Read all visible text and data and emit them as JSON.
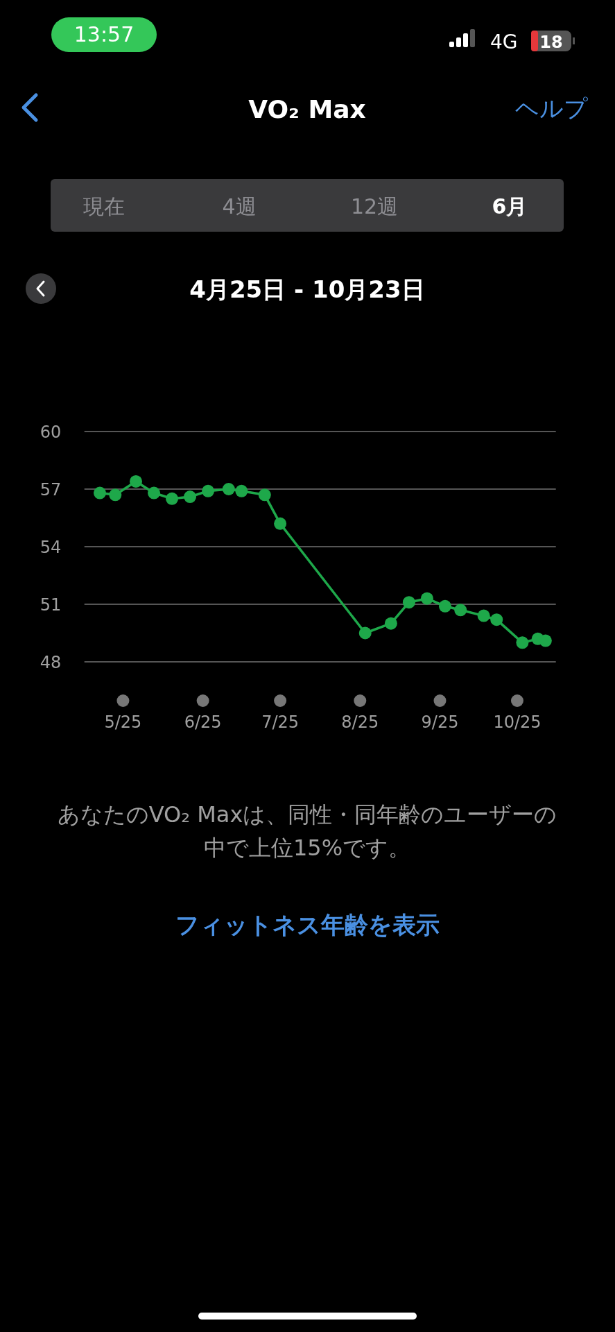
{
  "chart_data": {
    "type": "line",
    "title": "VO₂ Max",
    "subtitle": "4月25日 - 10月23日",
    "annotations": [
      "13:57",
      "4G",
      "18",
      "ヘルプ",
      "現在",
      "4週",
      "12週",
      "6月",
      "あなたのVO₂ Maxは、同性・同年齢のユーザーの中で上位15%です。",
      "フィットネス年齢を表示"
    ],
    "x": [
      "--05-16",
      "--05-22",
      "--05-30",
      "--06-06",
      "--06-13",
      "--06-20",
      "--06-27",
      "--07-05",
      "--07-10",
      "--07-19",
      "--07-25",
      "--08-27",
      "--09-06",
      "--09-13",
      "--09-20",
      "--09-27",
      "--10-03",
      "--10-12",
      "--10-17",
      "--10-27",
      "--11-02",
      "--11-05"
    ],
    "series": [
      {
        "color": "#1ea84a",
        "values": [
          56.8,
          56.7,
          57.4,
          56.8,
          56.5,
          56.6,
          56.9,
          57.0,
          56.9,
          56.7,
          55.2,
          49.5,
          50.0,
          51.1,
          51.3,
          50.9,
          50.7,
          50.4,
          50.2,
          49.0,
          49.2,
          49.1
        ]
      }
    ],
    "xlim": [
      "--05-10",
      "--11-09"
    ],
    "xticks": [
      {
        "value": "--05-25",
        "label": "5/25"
      },
      {
        "value": "--06-25",
        "label": "6/25"
      },
      {
        "value": "--07-25",
        "label": "7/25"
      },
      {
        "value": "--08-25",
        "label": "8/25"
      },
      {
        "value": "--09-25",
        "label": "9/25"
      },
      {
        "value": "--10-25",
        "label": "10/25"
      }
    ],
    "ylim": [
      48,
      60
    ],
    "yticks": [
      48,
      51,
      54,
      57,
      60
    ],
    "grid": "y",
    "marker": "circle",
    "line_style": "solid"
  }
}
